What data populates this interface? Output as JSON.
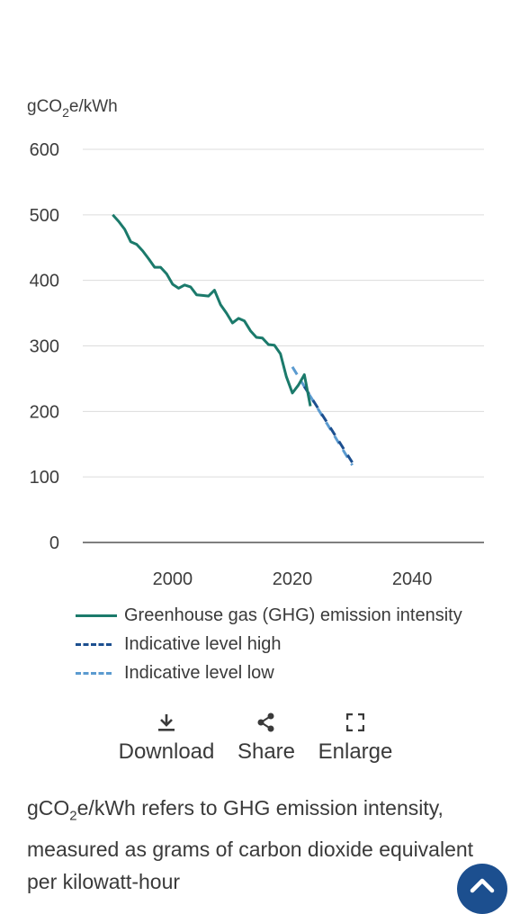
{
  "chart_data": {
    "type": "line",
    "ylabel_prefix": "gCO",
    "ylabel_sub": "2",
    "ylabel_suffix": "e/kWh",
    "xlim": [
      1985,
      2052
    ],
    "ylim": [
      0,
      600
    ],
    "x_ticks": [
      2000,
      2020,
      2040
    ],
    "y_ticks": [
      0,
      100,
      200,
      300,
      400,
      500,
      600
    ],
    "grid": true,
    "legend_position": "bottom",
    "series": [
      {
        "name": "Greenhouse gas (GHG) emission intensity",
        "color": "#1b7a6b",
        "style": "solid",
        "points": [
          [
            1990,
            500
          ],
          [
            1991,
            490
          ],
          [
            1992,
            478
          ],
          [
            1993,
            459
          ],
          [
            1994,
            455
          ],
          [
            1995,
            445
          ],
          [
            1996,
            433
          ],
          [
            1997,
            420
          ],
          [
            1998,
            420
          ],
          [
            1999,
            410
          ],
          [
            2000,
            394
          ],
          [
            2001,
            388
          ],
          [
            2002,
            393
          ],
          [
            2003,
            390
          ],
          [
            2004,
            378
          ],
          [
            2005,
            377
          ],
          [
            2006,
            376
          ],
          [
            2007,
            385
          ],
          [
            2008,
            363
          ],
          [
            2009,
            350
          ],
          [
            2010,
            335
          ],
          [
            2011,
            342
          ],
          [
            2012,
            338
          ],
          [
            2013,
            323
          ],
          [
            2014,
            313
          ],
          [
            2015,
            312
          ],
          [
            2016,
            302
          ],
          [
            2017,
            301
          ],
          [
            2018,
            288
          ],
          [
            2019,
            253
          ],
          [
            2020,
            228
          ],
          [
            2021,
            240
          ],
          [
            2022,
            256
          ],
          [
            2023,
            208
          ]
        ]
      },
      {
        "name": "Indicative level high",
        "color": "#1c4f8f",
        "style": "dashed",
        "points": [
          [
            2022,
            238
          ],
          [
            2030,
            122
          ]
        ]
      },
      {
        "name": "Indicative level low",
        "color": "#5b9bd0",
        "style": "dashed",
        "points": [
          [
            2020,
            268
          ],
          [
            2030,
            118
          ]
        ]
      }
    ]
  },
  "actions": {
    "download_label": "Download",
    "download_icon": "download-icon",
    "share_label": "Share",
    "share_icon": "share-icon",
    "enlarge_label": "Enlarge",
    "enlarge_icon": "enlarge-icon"
  },
  "note": {
    "prefix": "gCO",
    "sub": "2",
    "text": "e/kWh refers to GHG emission intensity, measured as grams of carbon dioxide equivalent per kilowatt-hour"
  },
  "fab": {
    "icon": "chevron-up-icon",
    "color": "#1c4f8f"
  }
}
